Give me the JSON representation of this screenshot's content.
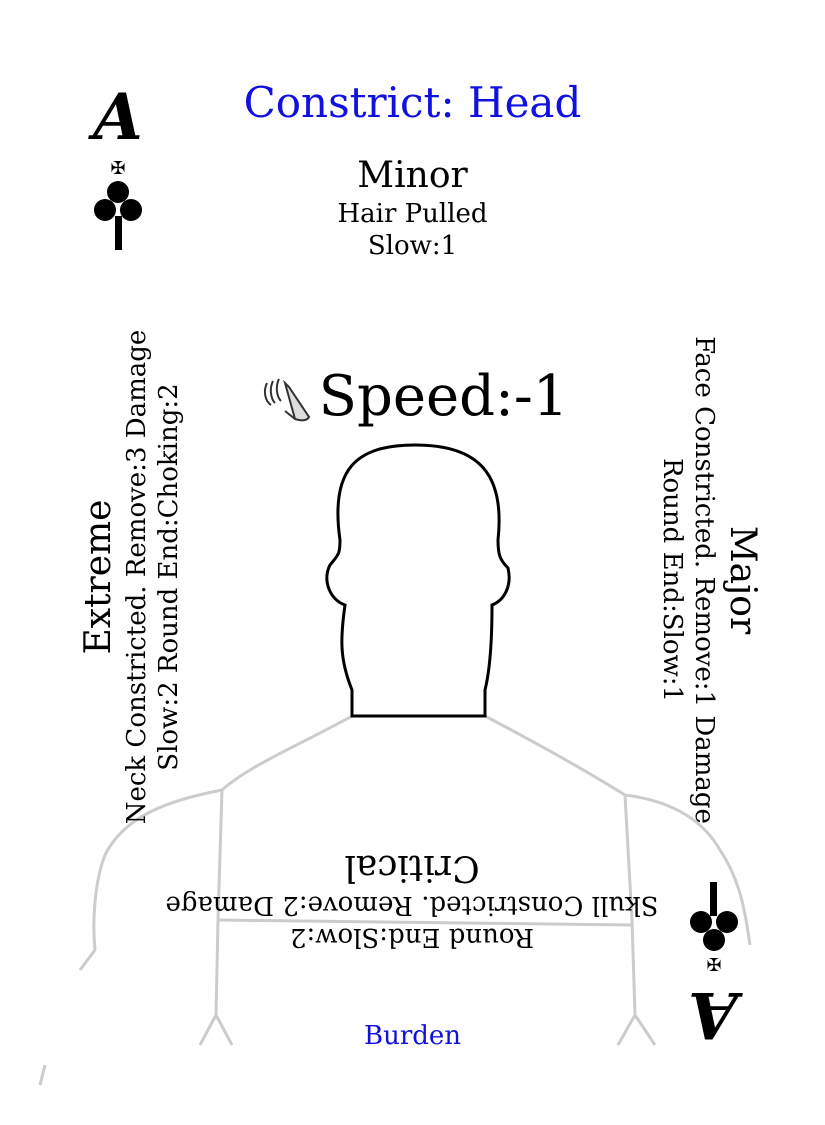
{
  "card": {
    "title": "Constrict: Head",
    "rank": "A",
    "suit_icon": "club-icon",
    "stat": {
      "icon": "winged-shoe-icon",
      "label": "Speed:-1"
    },
    "footer": "Burden",
    "colors": {
      "title": "#1010e0",
      "footer": "#1010e0",
      "body_outline": "#cccccc",
      "head_outline": "#000000"
    }
  },
  "severities": {
    "minor": {
      "title": "Minor",
      "lines": [
        "Hair Pulled",
        "Slow:1"
      ]
    },
    "major": {
      "title": "Major",
      "lines": [
        "Face Constricted. Remove:1 Damage",
        "Round End:Slow:1"
      ]
    },
    "critical": {
      "title": "Critical",
      "lines": [
        "Skull Constricted. Remove:2 Damage",
        "Round End:Slow:2"
      ]
    },
    "extreme": {
      "title": "Extreme",
      "lines": [
        "Neck Constricted. Remove:3 Damage",
        "Slow:2 Round End:Choking:2"
      ]
    }
  }
}
